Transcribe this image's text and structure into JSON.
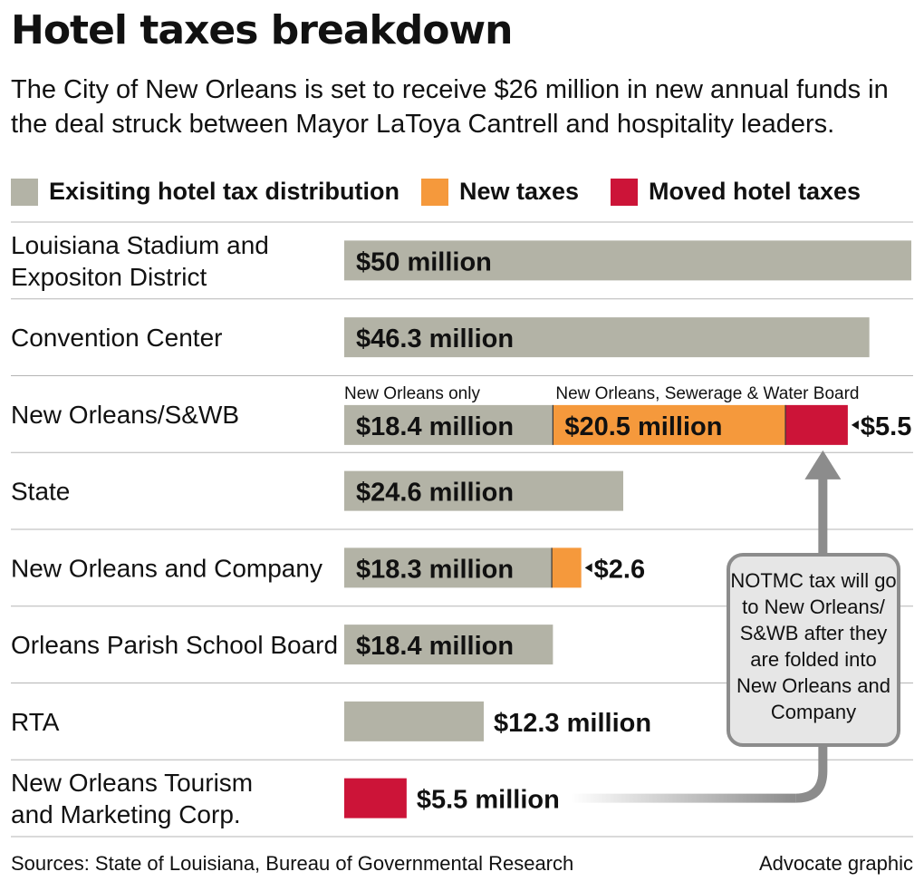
{
  "title": "Hotel taxes breakdown",
  "subtitle": "The City of New Orleans is set to receive $26 million in new annual funds in the deal struck between Mayor LaToya Cantrell and hospitality leaders.",
  "colors": {
    "existing": "#b3b3a6",
    "new": "#f5993c",
    "moved": "#cc1438",
    "callout_fill": "#e6e6e6",
    "callout_stroke": "#8c8c8c",
    "arrow": "#8c8c8c",
    "divider": "#b5b5b5"
  },
  "legend": [
    {
      "key": "existing",
      "label": "Exisiting hotel tax distribution"
    },
    {
      "key": "new",
      "label": "New taxes"
    },
    {
      "key": "moved",
      "label": "Moved hotel taxes"
    }
  ],
  "chart_data": {
    "type": "bar",
    "orientation": "horizontal",
    "stacked": true,
    "unit": "million dollars",
    "xlim": [
      0,
      50
    ],
    "categories": [
      "Louisiana Stadium and Expositon District",
      "Convention Center",
      "New Orleans/S&WB",
      "State",
      "New Orleans and Company",
      "Orleans Parish School Board",
      "RTA",
      "New Orleans Tourism and Marketing Corp."
    ],
    "category_lines": [
      [
        "Louisiana Stadium and",
        "Expositon District"
      ],
      [
        "Convention Center"
      ],
      [
        "New Orleans/S&WB"
      ],
      [
        "State"
      ],
      [
        "New Orleans and Company"
      ],
      [
        "Orleans Parish School Board"
      ],
      [
        "RTA"
      ],
      [
        "New Orleans Tourism",
        "and Marketing Corp."
      ]
    ],
    "series": [
      {
        "name": "Exisiting hotel tax distribution",
        "key": "existing",
        "values": [
          50,
          46.3,
          18.4,
          24.6,
          18.3,
          18.4,
          12.3,
          0
        ]
      },
      {
        "name": "New taxes",
        "key": "new",
        "values": [
          0,
          0,
          20.5,
          0,
          2.6,
          0,
          0,
          0
        ]
      },
      {
        "name": "Moved hotel taxes",
        "key": "moved",
        "values": [
          0,
          0,
          5.5,
          0,
          0,
          0,
          0,
          5.5
        ]
      }
    ],
    "segment_labels": [
      [
        {
          "series": "existing",
          "text": "$50 million",
          "position": "inside"
        }
      ],
      [
        {
          "series": "existing",
          "text": "$46.3 million",
          "position": "inside"
        }
      ],
      [
        {
          "series": "existing",
          "text": "$18.4 million",
          "position": "inside"
        },
        {
          "series": "new",
          "text": "$20.5 million",
          "position": "inside"
        },
        {
          "series": "moved",
          "text": "$5.5",
          "position": "outside-pointer"
        }
      ],
      [
        {
          "series": "existing",
          "text": "$24.6 million",
          "position": "inside"
        }
      ],
      [
        {
          "series": "existing",
          "text": "$18.3 million",
          "position": "inside"
        },
        {
          "series": "new",
          "text": "$2.6",
          "position": "outside-pointer"
        }
      ],
      [
        {
          "series": "existing",
          "text": "$18.4 million",
          "position": "inside"
        }
      ],
      [
        {
          "series": "existing",
          "text": "$12.3 million",
          "position": "outside"
        }
      ],
      [
        {
          "series": "moved",
          "text": "$5.5 million",
          "position": "outside"
        }
      ]
    ],
    "annotations": [
      {
        "category": "New Orleans/S&WB",
        "series": "existing",
        "text": "New Orleans only"
      },
      {
        "category": "New Orleans/S&WB",
        "series": "new",
        "text": "New Orleans, Sewerage & Water Board"
      }
    ],
    "callout": {
      "lines": [
        "NOTMC tax will go",
        "to New Orleans/",
        "S&WB after they",
        "are folded into",
        "New Orleans and",
        "Company"
      ],
      "from_category": "New Orleans Tourism and Marketing Corp.",
      "to_category": "New Orleans/S&WB"
    }
  },
  "footer": {
    "source": "Sources: State of Louisiana, Bureau of Governmental Research",
    "credit": "Advocate graphic"
  }
}
